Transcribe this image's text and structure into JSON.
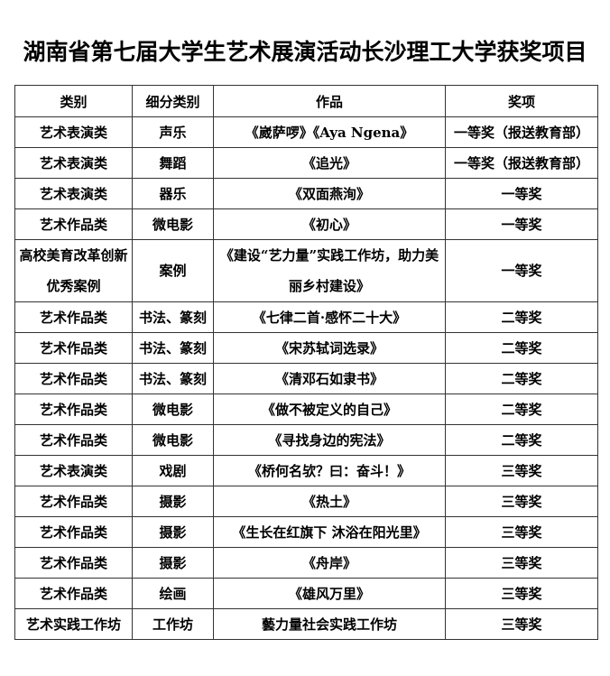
{
  "title": "湖南省第七届大学生艺术展演活动长沙理工大学获奖项目",
  "table": {
    "headers": [
      "类别",
      "细分类别",
      "作品",
      "奖项"
    ],
    "rows": [
      [
        "艺术表演类",
        "声乐",
        "《崴萨啰》《Aya Ngena》",
        "一等奖（报送教育部）"
      ],
      [
        "艺术表演类",
        "舞蹈",
        "《追光》",
        "一等奖（报送教育部）"
      ],
      [
        "艺术表演类",
        "器乐",
        "《双面燕洵》",
        "一等奖"
      ],
      [
        "艺术作品类",
        "微电影",
        "《初心》",
        "一等奖"
      ],
      [
        "高校美育改革创新优秀案例",
        "案例",
        "《建设“艺力量”实践工作坊，助力美丽乡村建设》",
        "一等奖"
      ],
      [
        "艺术作品类",
        "书法、篆刻",
        "《七律二首·感怀二十大》",
        "二等奖"
      ],
      [
        "艺术作品类",
        "书法、篆刻",
        "《宋苏轼词选录》",
        "二等奖"
      ],
      [
        "艺术作品类",
        "书法、篆刻",
        "《清邓石如隶书》",
        "二等奖"
      ],
      [
        "艺术作品类",
        "微电影",
        "《做不被定义的自己》",
        "二等奖"
      ],
      [
        "艺术作品类",
        "微电影",
        "《寻找身边的宪法》",
        "二等奖"
      ],
      [
        "艺术表演类",
        "戏剧",
        "《桥何名欤？曰：奋斗！》",
        "三等奖"
      ],
      [
        "艺术作品类",
        "摄影",
        "《热土》",
        "三等奖"
      ],
      [
        "艺术作品类",
        "摄影",
        "《生长在红旗下 沐浴在阳光里》",
        "三等奖"
      ],
      [
        "艺术作品类",
        "摄影",
        "《舟岸》",
        "三等奖"
      ],
      [
        "艺术作品类",
        "绘画",
        "《雄风万里》",
        "三等奖"
      ],
      [
        "艺术实践工作坊",
        "工作坊",
        "藝力量社会实践工作坊",
        "三等奖"
      ]
    ]
  }
}
